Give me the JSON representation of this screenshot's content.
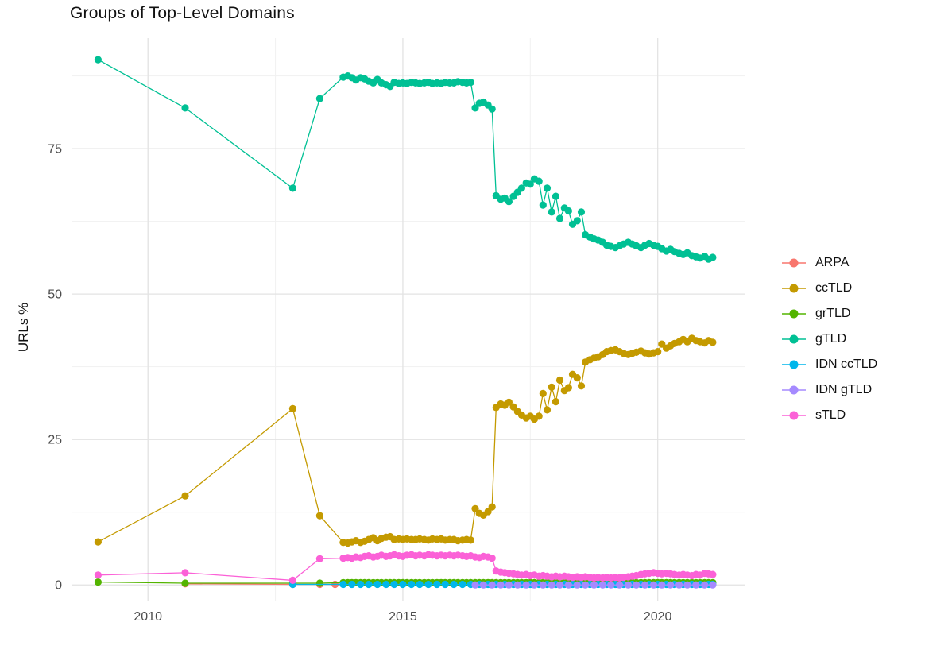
{
  "chart_data": {
    "type": "line",
    "title": "Groups of Top-Level Domains",
    "xlabel": "",
    "ylabel": "URLs %",
    "xlim": [
      2008.5,
      2021.72
    ],
    "ylim": [
      -2.7,
      94.0
    ],
    "x_ticks": [
      2010,
      2015,
      2020
    ],
    "y_ticks": [
      0,
      25,
      50,
      75
    ],
    "x_minor": [
      2012.5,
      2017.5
    ],
    "y_minor": [
      12.5,
      37.5,
      62.5,
      87.5
    ],
    "grid": true,
    "legend_position": "right",
    "marker": "circle",
    "series": [
      {
        "name": "ARPA",
        "color": "#F8766D",
        "x": [
          2010.73,
          2012.84,
          2013.37,
          2013.67
        ],
        "y": [
          0.2,
          0.1,
          0.1,
          0.1
        ]
      },
      {
        "name": "ccTLD",
        "color": "#C49A00",
        "x": [
          2009.02,
          2010.73,
          2012.84,
          2013.37,
          2013.83,
          2013.92,
          2014.0,
          2014.08,
          2014.17,
          2014.25,
          2014.33,
          2014.42,
          2014.5,
          2014.58,
          2014.67,
          2014.75,
          2014.83,
          2014.92,
          2015.0,
          2015.08,
          2015.17,
          2015.25,
          2015.33,
          2015.42,
          2015.5,
          2015.58,
          2015.67,
          2015.75,
          2015.83,
          2015.92,
          2016.0,
          2016.08,
          2016.17,
          2016.25,
          2016.33,
          2016.42,
          2016.5,
          2016.58,
          2016.67,
          2016.75,
          2016.83,
          2016.92,
          2017.0,
          2017.08,
          2017.17,
          2017.25,
          2017.33,
          2017.42,
          2017.5,
          2017.58,
          2017.67,
          2017.75,
          2017.83,
          2017.92,
          2018.0,
          2018.08,
          2018.17,
          2018.25,
          2018.33,
          2018.42,
          2018.5,
          2018.58,
          2018.67,
          2018.75,
          2018.83,
          2018.92,
          2019.0,
          2019.08,
          2019.17,
          2019.25,
          2019.33,
          2019.42,
          2019.5,
          2019.58,
          2019.67,
          2019.75,
          2019.83,
          2019.92,
          2020.0,
          2020.08,
          2020.17,
          2020.25,
          2020.33,
          2020.42,
          2020.5,
          2020.58,
          2020.67,
          2020.75,
          2020.83,
          2020.92,
          2021.0,
          2021.08
        ],
        "y": [
          7.4,
          15.3,
          30.3,
          11.9,
          7.3,
          7.2,
          7.4,
          7.6,
          7.3,
          7.5,
          7.8,
          8.1,
          7.6,
          8.0,
          8.2,
          8.3,
          7.8,
          7.9,
          7.8,
          7.9,
          7.8,
          7.8,
          7.9,
          7.8,
          7.7,
          7.9,
          7.8,
          7.9,
          7.7,
          7.8,
          7.8,
          7.6,
          7.7,
          7.8,
          7.7,
          13.1,
          12.3,
          12.0,
          12.6,
          13.4,
          30.5,
          31.1,
          30.9,
          31.4,
          30.6,
          29.8,
          29.2,
          28.7,
          29.0,
          28.5,
          29.0,
          32.9,
          30.1,
          34.0,
          31.5,
          35.2,
          33.4,
          33.9,
          36.2,
          35.6,
          34.2,
          38.3,
          38.7,
          39.0,
          39.2,
          39.6,
          40.1,
          40.3,
          40.4,
          40.1,
          39.8,
          39.6,
          39.8,
          40.0,
          40.2,
          39.9,
          39.7,
          39.9,
          40.1,
          41.4,
          40.7,
          41.1,
          41.5,
          41.8,
          42.2,
          41.8,
          42.4,
          42.0,
          41.8,
          41.6,
          42.0,
          41.7
        ]
      },
      {
        "name": "grTLD",
        "color": "#53B400",
        "x": [
          2009.02,
          2010.73,
          2012.84,
          2013.37,
          2013.83,
          2013.92,
          2014.0,
          2014.08,
          2014.17,
          2014.25,
          2014.33,
          2014.42,
          2014.5,
          2014.58,
          2014.67,
          2014.75,
          2014.83,
          2014.92,
          2015.0,
          2015.08,
          2015.17,
          2015.25,
          2015.33,
          2015.42,
          2015.5,
          2015.58,
          2015.67,
          2015.75,
          2015.83,
          2015.92,
          2016.0,
          2016.08,
          2016.17,
          2016.25,
          2016.33,
          2016.42,
          2016.5,
          2016.58,
          2016.67,
          2016.75,
          2016.83,
          2016.92,
          2017.0,
          2017.08,
          2017.17,
          2017.25,
          2017.33,
          2017.42,
          2017.5,
          2017.58,
          2017.67,
          2017.75,
          2017.83,
          2017.92,
          2018.0,
          2018.08,
          2018.17,
          2018.25,
          2018.33,
          2018.42,
          2018.5,
          2018.58,
          2018.67,
          2018.75,
          2018.83,
          2018.92,
          2019.0,
          2019.08,
          2019.17,
          2019.25,
          2019.33,
          2019.42,
          2019.5,
          2019.58,
          2019.67,
          2019.75,
          2019.83,
          2019.92,
          2020.0,
          2020.08,
          2020.17,
          2020.25,
          2020.33,
          2020.42,
          2020.5,
          2020.58,
          2020.67,
          2020.75,
          2020.83,
          2020.92,
          2021.0,
          2021.08
        ],
        "y": [
          0.5,
          0.3,
          0.3,
          0.3,
          0.4,
          0.4,
          0.4,
          0.4,
          0.4,
          0.4,
          0.4,
          0.4,
          0.4,
          0.4,
          0.4,
          0.4,
          0.4,
          0.4,
          0.4,
          0.4,
          0.4,
          0.4,
          0.4,
          0.4,
          0.4,
          0.4,
          0.4,
          0.4,
          0.4,
          0.4,
          0.4,
          0.4,
          0.4,
          0.4,
          0.4,
          0.4,
          0.4,
          0.4,
          0.4,
          0.4,
          0.4,
          0.4,
          0.4,
          0.4,
          0.4,
          0.4,
          0.4,
          0.4,
          0.4,
          0.4,
          0.4,
          0.4,
          0.4,
          0.4,
          0.4,
          0.4,
          0.4,
          0.4,
          0.4,
          0.4,
          0.4,
          0.4,
          0.4,
          0.4,
          0.4,
          0.4,
          0.4,
          0.4,
          0.4,
          0.4,
          0.4,
          0.4,
          0.4,
          0.4,
          0.4,
          0.4,
          0.4,
          0.4,
          0.4,
          0.4,
          0.4,
          0.4,
          0.4,
          0.4,
          0.4,
          0.4,
          0.4,
          0.4,
          0.4,
          0.4,
          0.4,
          0.4
        ]
      },
      {
        "name": "gTLD",
        "color": "#00C094",
        "x": [
          2009.02,
          2010.73,
          2012.84,
          2013.37,
          2013.83,
          2013.92,
          2014.0,
          2014.08,
          2014.17,
          2014.25,
          2014.33,
          2014.42,
          2014.5,
          2014.58,
          2014.67,
          2014.75,
          2014.83,
          2014.92,
          2015.0,
          2015.08,
          2015.17,
          2015.25,
          2015.33,
          2015.42,
          2015.5,
          2015.58,
          2015.67,
          2015.75,
          2015.83,
          2015.92,
          2016.0,
          2016.08,
          2016.17,
          2016.25,
          2016.33,
          2016.42,
          2016.5,
          2016.58,
          2016.67,
          2016.75,
          2016.83,
          2016.92,
          2017.0,
          2017.08,
          2017.17,
          2017.25,
          2017.33,
          2017.42,
          2017.5,
          2017.58,
          2017.67,
          2017.75,
          2017.83,
          2017.92,
          2018.0,
          2018.08,
          2018.17,
          2018.25,
          2018.33,
          2018.42,
          2018.5,
          2018.58,
          2018.67,
          2018.75,
          2018.83,
          2018.92,
          2019.0,
          2019.08,
          2019.17,
          2019.25,
          2019.33,
          2019.42,
          2019.5,
          2019.58,
          2019.67,
          2019.75,
          2019.83,
          2019.92,
          2020.0,
          2020.08,
          2020.17,
          2020.25,
          2020.33,
          2020.42,
          2020.5,
          2020.58,
          2020.67,
          2020.75,
          2020.83,
          2020.92,
          2021.0,
          2021.08
        ],
        "y": [
          90.3,
          82.0,
          68.2,
          83.6,
          87.3,
          87.5,
          87.2,
          86.8,
          87.2,
          87.0,
          86.6,
          86.3,
          86.9,
          86.3,
          86.0,
          85.7,
          86.4,
          86.2,
          86.3,
          86.2,
          86.4,
          86.3,
          86.2,
          86.3,
          86.4,
          86.2,
          86.3,
          86.2,
          86.4,
          86.3,
          86.3,
          86.5,
          86.4,
          86.3,
          86.4,
          82.0,
          82.8,
          83.0,
          82.5,
          81.8,
          66.9,
          66.3,
          66.5,
          65.9,
          66.8,
          67.5,
          68.2,
          69.1,
          68.9,
          69.8,
          69.4,
          65.3,
          68.2,
          64.1,
          66.8,
          63.0,
          64.8,
          64.3,
          62.0,
          62.6,
          64.1,
          60.2,
          59.8,
          59.5,
          59.3,
          58.9,
          58.4,
          58.2,
          58.0,
          58.3,
          58.6,
          58.9,
          58.6,
          58.3,
          58.0,
          58.4,
          58.7,
          58.4,
          58.2,
          57.8,
          57.4,
          57.7,
          57.3,
          57.0,
          56.8,
          57.1,
          56.6,
          56.4,
          56.2,
          56.5,
          56.0,
          56.3
        ]
      },
      {
        "name": "IDN ccTLD",
        "color": "#00B6EB",
        "x": [
          2012.84,
          2013.83,
          2014.0,
          2014.17,
          2014.33,
          2014.5,
          2014.67,
          2014.83,
          2015.0,
          2015.17,
          2015.33,
          2015.5,
          2015.67,
          2015.83,
          2016.0,
          2016.17,
          2016.33,
          2016.5,
          2016.67,
          2016.83,
          2017.0,
          2017.17,
          2017.33,
          2017.5,
          2017.67,
          2017.83,
          2018.0,
          2018.17,
          2018.33,
          2018.5,
          2018.67,
          2018.83,
          2019.0,
          2019.17,
          2019.33,
          2019.5,
          2019.67,
          2019.83,
          2020.0,
          2020.17,
          2020.33,
          2020.5,
          2020.67,
          2020.83,
          2021.0,
          2021.08
        ],
        "y": [
          0.1,
          0.1,
          0.1,
          0.1,
          0.1,
          0.1,
          0.1,
          0.1,
          0.1,
          0.1,
          0.1,
          0.1,
          0.1,
          0.1,
          0.1,
          0.1,
          0.1,
          0.1,
          0.1,
          0.1,
          0.1,
          0.1,
          0.1,
          0.1,
          0.1,
          0.1,
          0.1,
          0.1,
          0.1,
          0.1,
          0.1,
          0.1,
          0.1,
          0.1,
          0.1,
          0.1,
          0.1,
          0.1,
          0.1,
          0.1,
          0.1,
          0.1,
          0.1,
          0.1,
          0.1,
          0.1
        ]
      },
      {
        "name": "IDN gTLD",
        "color": "#A58AFF",
        "x": [
          2016.42,
          2016.58,
          2016.75,
          2016.92,
          2017.08,
          2017.25,
          2017.42,
          2017.58,
          2017.75,
          2017.92,
          2018.08,
          2018.25,
          2018.42,
          2018.58,
          2018.75,
          2018.92,
          2019.08,
          2019.25,
          2019.42,
          2019.58,
          2019.75,
          2019.92,
          2020.08,
          2020.25,
          2020.42,
          2020.58,
          2020.75,
          2020.92,
          2021.08
        ],
        "y": [
          0.0,
          0.0,
          0.0,
          0.0,
          0.0,
          0.0,
          0.0,
          0.0,
          0.0,
          0.0,
          0.0,
          0.0,
          0.0,
          0.0,
          0.0,
          0.0,
          0.0,
          0.0,
          0.0,
          0.0,
          0.0,
          0.0,
          0.0,
          0.0,
          0.0,
          0.0,
          0.0,
          0.0,
          0.0
        ]
      },
      {
        "name": "sTLD",
        "color": "#FB61D7",
        "x": [
          2009.02,
          2010.73,
          2012.84,
          2013.37,
          2013.83,
          2013.92,
          2014.0,
          2014.08,
          2014.17,
          2014.25,
          2014.33,
          2014.42,
          2014.5,
          2014.58,
          2014.67,
          2014.75,
          2014.83,
          2014.92,
          2015.0,
          2015.08,
          2015.17,
          2015.25,
          2015.33,
          2015.42,
          2015.5,
          2015.58,
          2015.67,
          2015.75,
          2015.83,
          2015.92,
          2016.0,
          2016.08,
          2016.17,
          2016.25,
          2016.33,
          2016.42,
          2016.5,
          2016.58,
          2016.67,
          2016.75,
          2016.83,
          2016.92,
          2017.0,
          2017.08,
          2017.17,
          2017.25,
          2017.33,
          2017.42,
          2017.5,
          2017.58,
          2017.67,
          2017.75,
          2017.83,
          2017.92,
          2018.0,
          2018.08,
          2018.17,
          2018.25,
          2018.33,
          2018.42,
          2018.5,
          2018.58,
          2018.67,
          2018.75,
          2018.83,
          2018.92,
          2019.0,
          2019.08,
          2019.17,
          2019.25,
          2019.33,
          2019.42,
          2019.5,
          2019.58,
          2019.67,
          2019.75,
          2019.83,
          2019.92,
          2020.0,
          2020.08,
          2020.17,
          2020.25,
          2020.33,
          2020.42,
          2020.5,
          2020.58,
          2020.67,
          2020.75,
          2020.83,
          2020.92,
          2021.0,
          2021.08
        ],
        "y": [
          1.7,
          2.1,
          0.8,
          4.5,
          4.6,
          4.7,
          4.6,
          4.8,
          4.7,
          4.9,
          5.0,
          4.8,
          4.9,
          5.1,
          4.9,
          5.0,
          5.2,
          5.0,
          4.9,
          5.1,
          5.2,
          5.0,
          5.1,
          5.0,
          5.2,
          5.1,
          5.0,
          5.1,
          5.0,
          5.1,
          5.0,
          5.1,
          5.0,
          4.9,
          5.0,
          4.8,
          4.7,
          4.9,
          4.8,
          4.6,
          2.4,
          2.2,
          2.1,
          2.0,
          1.9,
          1.8,
          1.7,
          1.8,
          1.6,
          1.7,
          1.5,
          1.6,
          1.5,
          1.4,
          1.5,
          1.4,
          1.5,
          1.4,
          1.3,
          1.4,
          1.3,
          1.4,
          1.3,
          1.2,
          1.3,
          1.2,
          1.3,
          1.2,
          1.3,
          1.2,
          1.3,
          1.4,
          1.5,
          1.6,
          1.8,
          1.9,
          2.0,
          2.1,
          2.0,
          1.9,
          2.0,
          1.9,
          1.8,
          1.7,
          1.8,
          1.7,
          1.6,
          1.8,
          1.7,
          2.0,
          1.9,
          1.8
        ]
      }
    ],
    "style": {
      "grid_major_color": "#E3E3E3",
      "grid_minor_color": "#F1F1F1",
      "tick_label_color": "#4D4D4D",
      "text_color": "#111111",
      "background": "#FFFFFF"
    }
  }
}
